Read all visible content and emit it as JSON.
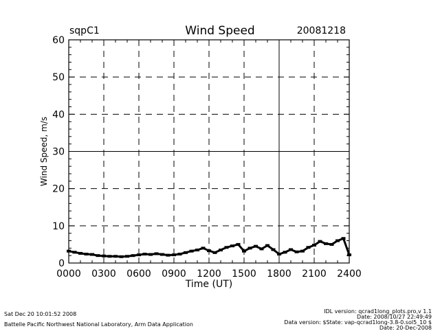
{
  "header": {
    "site": "sqpC1",
    "title": "Wind Speed",
    "date": "20081218"
  },
  "footer": {
    "timestamp": "Sat Dec 20 10:01:52 2008",
    "lab": "Battelle Pacific Northwest National Laboratory, Arm Data Application",
    "idl_version": "IDL version: qcrad1long_plots.pro,v 1.1",
    "idl_date": "Date: 2008/10/27 22:49:49",
    "data_version": "Data version: $State: vap-qcrad1long-3.8-0.sol5_10 $",
    "data_date": "Date: 20-Dec-2008"
  },
  "chart_data": {
    "type": "scatter",
    "title": "Wind Speed",
    "xlabel": "Time (UT)",
    "ylabel": "Wind Speed, m/s",
    "xlim": [
      0,
      24
    ],
    "ylim": [
      0,
      60
    ],
    "x_ticks": [
      0,
      3,
      6,
      9,
      12,
      15,
      18,
      21,
      24
    ],
    "x_tick_labels": [
      "0000",
      "0300",
      "0600",
      "0900",
      "1200",
      "1500",
      "1800",
      "2100",
      "2400"
    ],
    "y_ticks": [
      0,
      10,
      20,
      30,
      40,
      50,
      60
    ],
    "y_tick_labels": [
      "0",
      "10",
      "20",
      "30",
      "40",
      "50",
      "60"
    ],
    "grid_dashed_x": [
      3,
      6,
      9,
      12,
      15,
      21
    ],
    "grid_solid_x": [
      18
    ],
    "grid_dashed_y": [
      10,
      20,
      40,
      50
    ],
    "grid_solid_y": [
      30
    ],
    "series": [
      {
        "x": [
          0.0,
          0.5,
          1.0,
          1.5,
          2.0,
          2.5,
          3.0,
          3.5,
          4.0,
          4.5,
          5.0,
          5.5,
          6.0,
          6.5,
          7.0,
          7.5,
          8.0,
          8.5,
          9.0,
          9.5,
          10.0,
          10.5,
          11.0,
          11.5,
          12.0,
          12.5,
          13.0,
          13.5,
          14.0,
          14.5,
          15.0,
          15.5,
          16.0,
          16.5,
          17.0,
          17.5,
          18.0,
          18.5,
          19.0,
          19.5,
          20.0,
          20.5,
          21.0,
          21.5,
          22.0,
          22.5,
          23.0,
          23.5,
          24.0
        ],
        "y": [
          3.2,
          2.9,
          2.6,
          2.4,
          2.3,
          2.0,
          1.9,
          1.8,
          1.8,
          1.7,
          1.8,
          2.0,
          2.2,
          2.4,
          2.3,
          2.5,
          2.3,
          2.1,
          2.2,
          2.4,
          2.8,
          3.2,
          3.5,
          4.0,
          3.3,
          2.8,
          3.5,
          4.2,
          4.6,
          5.0,
          3.2,
          4.0,
          4.5,
          3.8,
          4.7,
          3.6,
          2.4,
          2.9,
          3.6,
          3.0,
          3.2,
          4.2,
          4.8,
          5.8,
          5.2,
          5.0,
          6.0,
          6.6,
          2.2
        ]
      }
    ]
  }
}
